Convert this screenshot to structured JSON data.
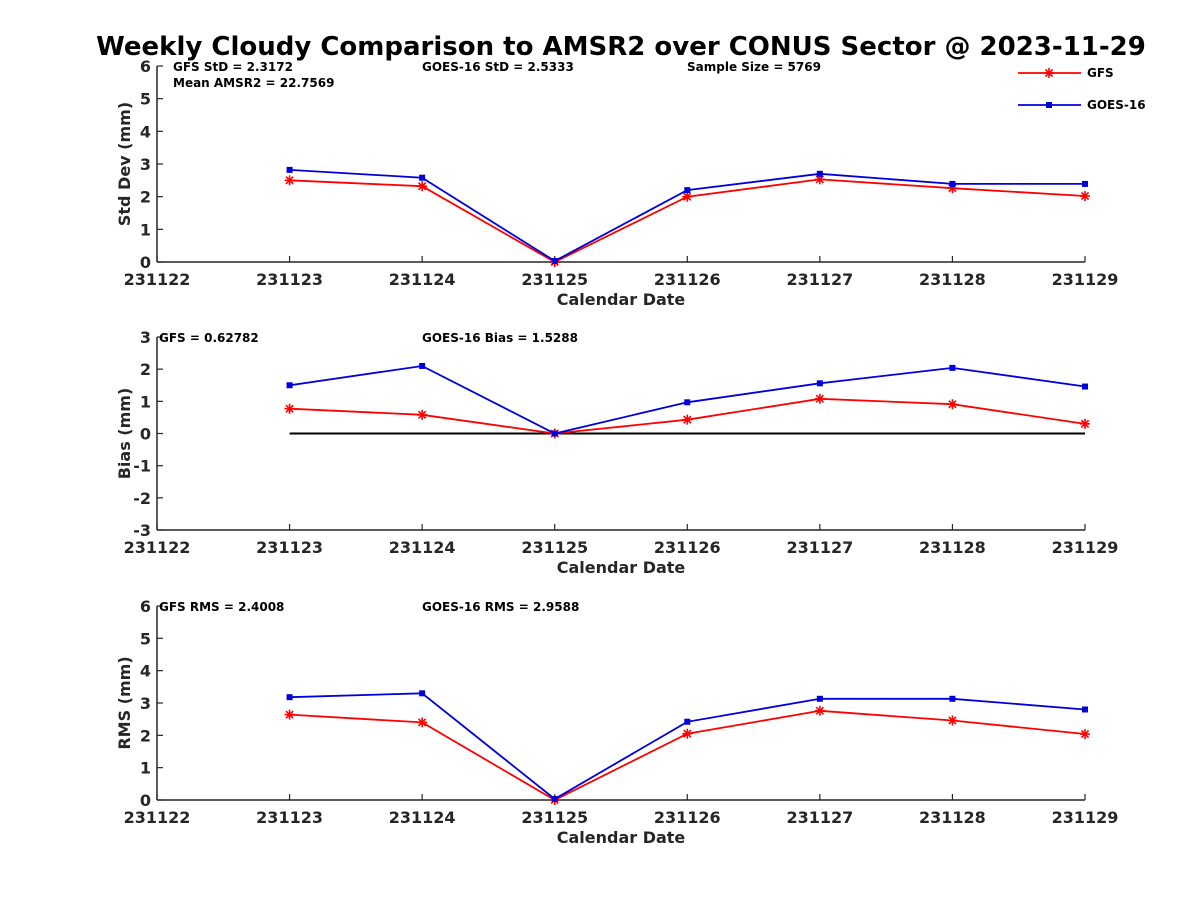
{
  "title": "Weekly Cloudy Comparison to AMSR2 over CONUS Sector @ 2023-11-29",
  "legend": {
    "placement": "top-right",
    "entries": [
      "GFS",
      "GOES-16"
    ]
  },
  "colors": {
    "gfs": "#ff0000",
    "goes": "#0000dd",
    "zero_line": "#000000",
    "axis": "#262626"
  },
  "chart_data": [
    {
      "type": "line",
      "xlabel": "Calendar Date",
      "ylabel": "Std Dev (mm)",
      "x_ticks": [
        "231122",
        "231123",
        "231124",
        "231125",
        "231126",
        "231127",
        "231128",
        "231129"
      ],
      "ylim": [
        0,
        6
      ],
      "y_ticks": [
        "0",
        "1",
        "2",
        "3",
        "4",
        "5",
        "6"
      ],
      "categories": [
        "231123",
        "231124",
        "231125",
        "231126",
        "231127",
        "231128",
        "231129"
      ],
      "series": [
        {
          "name": "GFS",
          "values": [
            2.5,
            2.32,
            0.0,
            2.0,
            2.53,
            2.26,
            2.02
          ]
        },
        {
          "name": "GOES-16",
          "values": [
            2.82,
            2.58,
            0.03,
            2.2,
            2.7,
            2.39,
            2.39
          ]
        }
      ],
      "zero_line": false,
      "annotations": [
        "GFS StD = 2.3172",
        "Mean AMSR2 = 22.7569",
        "GOES-16 StD = 2.5333",
        "Sample Size = 5769"
      ]
    },
    {
      "type": "line",
      "xlabel": "Calendar Date",
      "ylabel": "Bias (mm)",
      "x_ticks": [
        "231122",
        "231123",
        "231124",
        "231125",
        "231126",
        "231127",
        "231128",
        "231129"
      ],
      "ylim": [
        -3,
        3
      ],
      "y_ticks": [
        "-3",
        "-2",
        "-1",
        "0",
        "1",
        "2",
        "3"
      ],
      "categories": [
        "231123",
        "231124",
        "231125",
        "231126",
        "231127",
        "231128",
        "231129"
      ],
      "series": [
        {
          "name": "GFS",
          "values": [
            0.77,
            0.58,
            0.0,
            0.43,
            1.08,
            0.91,
            0.3
          ]
        },
        {
          "name": "GOES-16",
          "values": [
            1.5,
            2.1,
            0.0,
            0.97,
            1.56,
            2.04,
            1.46
          ]
        }
      ],
      "zero_line": true,
      "annotations": [
        "GFS = 0.62782",
        "GOES-16 Bias  = 1.5288"
      ]
    },
    {
      "type": "line",
      "xlabel": "Calendar Date",
      "ylabel": "RMS (mm)",
      "x_ticks": [
        "231122",
        "231123",
        "231124",
        "231125",
        "231126",
        "231127",
        "231128",
        "231129"
      ],
      "ylim": [
        0,
        6
      ],
      "y_ticks": [
        "0",
        "1",
        "2",
        "3",
        "4",
        "5",
        "6"
      ],
      "categories": [
        "231123",
        "231124",
        "231125",
        "231126",
        "231127",
        "231128",
        "231129"
      ],
      "series": [
        {
          "name": "GFS",
          "values": [
            2.64,
            2.4,
            0.0,
            2.05,
            2.76,
            2.46,
            2.04
          ]
        },
        {
          "name": "GOES-16",
          "values": [
            3.18,
            3.3,
            0.03,
            2.42,
            3.13,
            3.13,
            2.8
          ]
        }
      ],
      "zero_line": false,
      "annotations": [
        "GFS RMS = 2.4008",
        "GOES-16 RMS = 2.9588"
      ]
    }
  ]
}
